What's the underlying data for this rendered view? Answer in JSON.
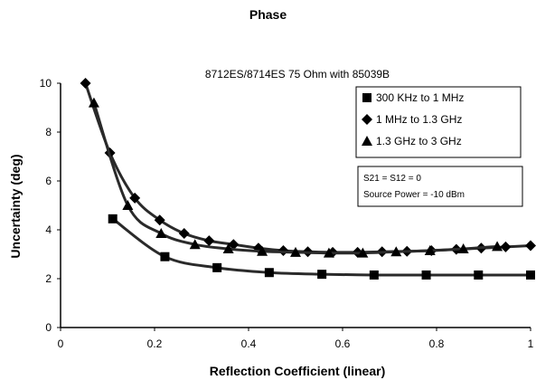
{
  "page_title": "Phase",
  "chart_data": {
    "type": "line",
    "title": "8712ES/8714ES 75 Ohm with 85039B",
    "xlabel": "Reflection Coefficient (linear)",
    "ylabel": "Uncertainty (deg)",
    "xlim": [
      0,
      1
    ],
    "ylim": [
      0,
      10
    ],
    "x_ticks": [
      "0",
      "0.2",
      "0.4",
      "0.6",
      "0.8",
      "1"
    ],
    "y_ticks": [
      "0",
      "2",
      "4",
      "6",
      "8",
      "10"
    ],
    "grid": false,
    "legend_position": "top-right",
    "series": [
      {
        "name": "300 KHz to 1 MHz",
        "marker": "square",
        "x": [
          0.111,
          0.222,
          0.333,
          0.444,
          0.556,
          0.667,
          0.778,
          0.889,
          1.0
        ],
        "y": [
          4.45,
          2.9,
          2.45,
          2.25,
          2.18,
          2.15,
          2.15,
          2.15,
          2.15
        ]
      },
      {
        "name": "1 MHz to 1.3 GHz",
        "marker": "diamond",
        "x": [
          0.053,
          0.105,
          0.158,
          0.211,
          0.263,
          0.316,
          0.368,
          0.421,
          0.474,
          0.526,
          0.579,
          0.632,
          0.684,
          0.737,
          0.789,
          0.842,
          0.895,
          0.947,
          1.0
        ],
        "y": [
          10.0,
          7.15,
          5.3,
          4.4,
          3.85,
          3.55,
          3.4,
          3.25,
          3.15,
          3.1,
          3.08,
          3.08,
          3.1,
          3.12,
          3.15,
          3.2,
          3.25,
          3.3,
          3.35
        ]
      },
      {
        "name": "1.3 GHz to 3 GHz",
        "marker": "triangle",
        "x": [
          0.071,
          0.143,
          0.214,
          0.286,
          0.357,
          0.429,
          0.5,
          0.571,
          0.643,
          0.714,
          0.786,
          0.857,
          0.929
        ],
        "y": [
          9.2,
          5.0,
          3.85,
          3.4,
          3.22,
          3.12,
          3.08,
          3.05,
          3.05,
          3.1,
          3.15,
          3.22,
          3.32
        ]
      }
    ],
    "annotation": {
      "lines": [
        "S21 = S12 = 0",
        "Source Power = -10 dBm"
      ]
    },
    "colors": {
      "line": "#2a2a2a",
      "marker": "#000000",
      "background": "#ffffff"
    }
  }
}
